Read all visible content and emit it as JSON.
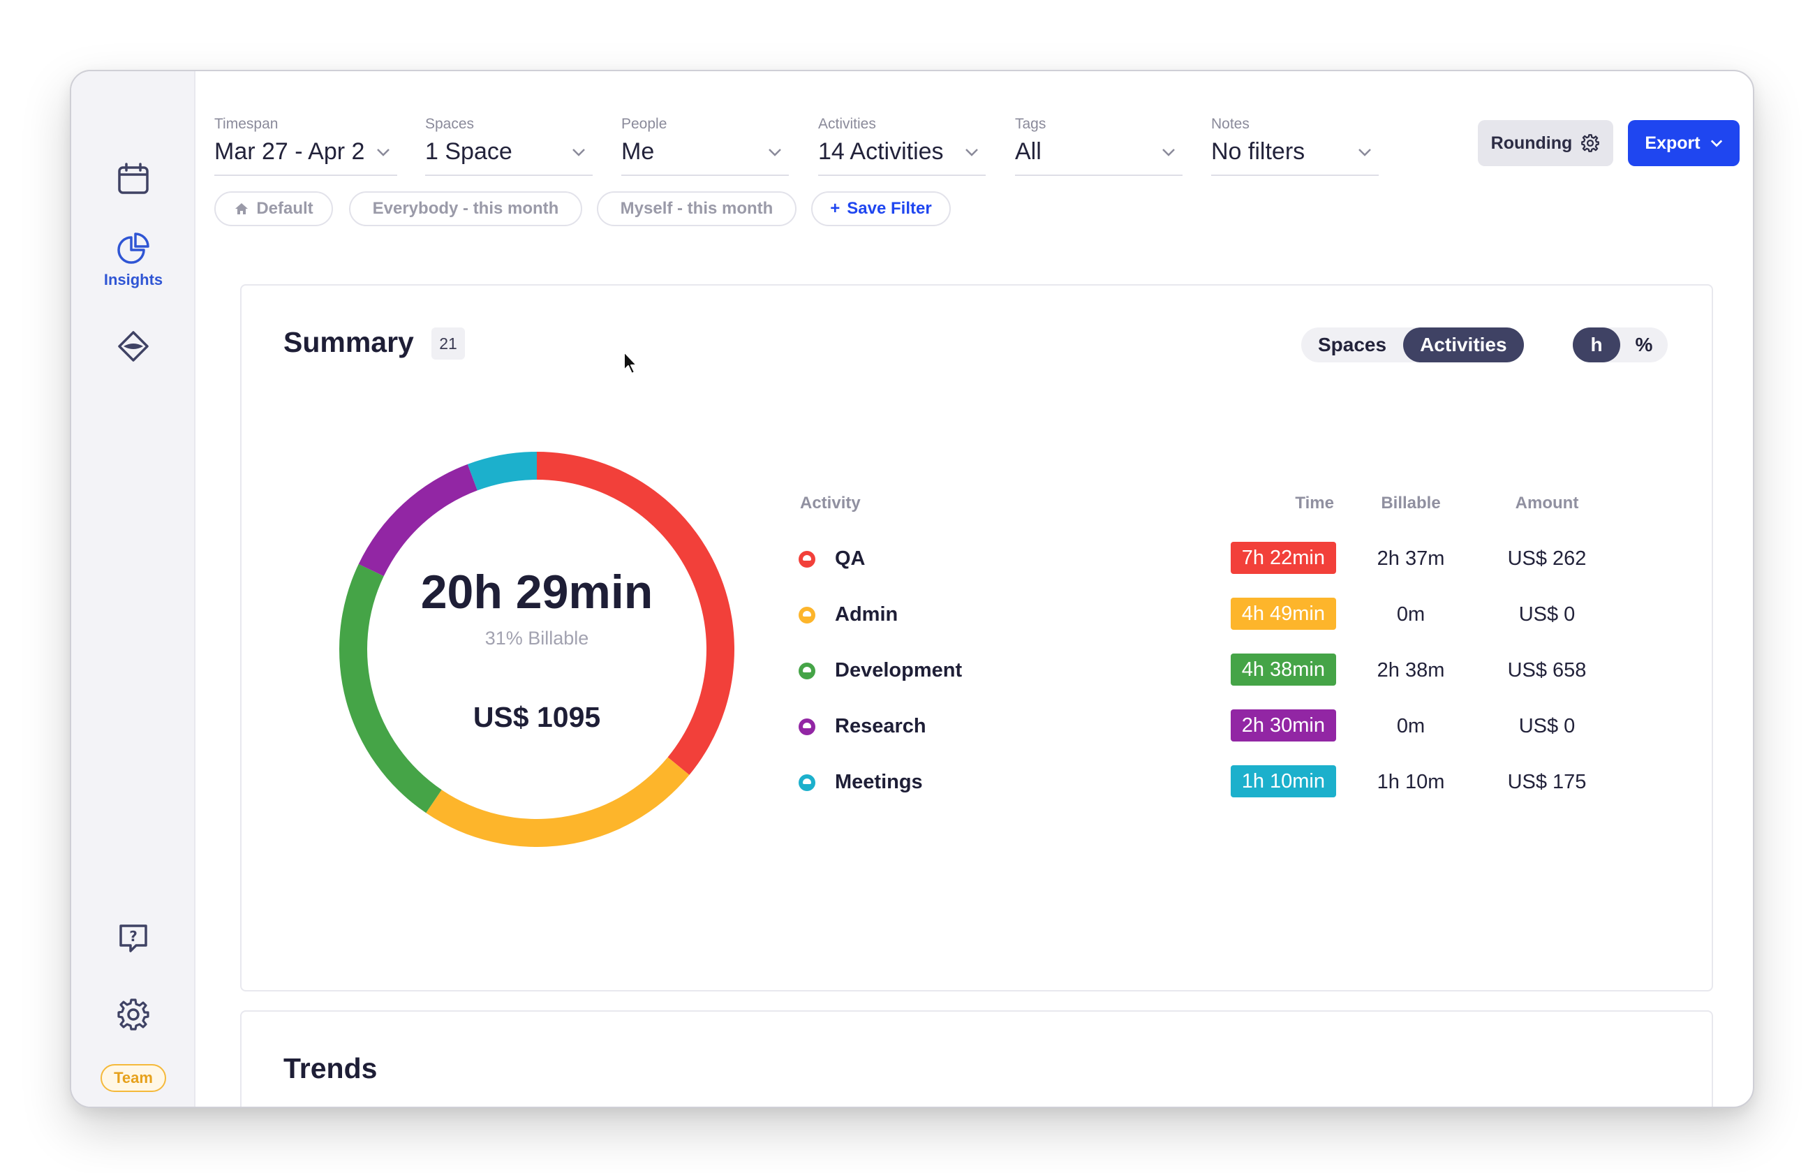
{
  "sidebar": {
    "items": [
      {
        "name": "calendar-icon",
        "label": ""
      },
      {
        "name": "insights-icon",
        "label": "Insights"
      },
      {
        "name": "spaces-icon",
        "label": ""
      }
    ],
    "help_icon": "help-icon",
    "settings_icon": "gear-icon",
    "team_badge": "Team"
  },
  "filters": [
    {
      "label": "Timespan",
      "value": "Mar 27 - Apr 2"
    },
    {
      "label": "Spaces",
      "value": "1 Space"
    },
    {
      "label": "People",
      "value": "Me"
    },
    {
      "label": "Activities",
      "value": "14 Activities"
    },
    {
      "label": "Tags",
      "value": "All"
    },
    {
      "label": "Notes",
      "value": "No filters"
    }
  ],
  "toolbar": {
    "rounding_label": "Rounding",
    "export_label": "Export"
  },
  "chips": [
    {
      "label": "Default",
      "icon": "home-icon"
    },
    {
      "label": "Everybody - this month"
    },
    {
      "label": "Myself - this month"
    },
    {
      "label": "Save Filter",
      "prefix": "+"
    }
  ],
  "summary": {
    "title": "Summary",
    "count": "21",
    "view_toggle": [
      {
        "label": "Spaces",
        "active": false
      },
      {
        "label": "Activities",
        "active": true
      }
    ],
    "unit_toggle": [
      {
        "label": "h",
        "active": true
      },
      {
        "label": "%",
        "active": false
      }
    ],
    "total_time": "20h 29min",
    "billable_text": "31% Billable",
    "total_amount": "US$ 1095",
    "columns": {
      "activity": "Activity",
      "time": "Time",
      "billable": "Billable",
      "amount": "Amount"
    },
    "rows": [
      {
        "name": "QA",
        "time": "7h 22min",
        "billable": "2h 37m",
        "amount": "US$ 262",
        "color": "#f2403a"
      },
      {
        "name": "Admin",
        "time": "4h 49min",
        "billable": "0m",
        "amount": "US$ 0",
        "color": "#fdb52b"
      },
      {
        "name": "Development",
        "time": "4h 38min",
        "billable": "2h 38m",
        "amount": "US$ 658",
        "color": "#45a447"
      },
      {
        "name": "Research",
        "time": "2h 30min",
        "billable": "0m",
        "amount": "US$ 0",
        "color": "#9226a4"
      },
      {
        "name": "Meetings",
        "time": "1h 10min",
        "billable": "1h 10m",
        "amount": "US$ 175",
        "color": "#1cb0cc"
      }
    ]
  },
  "chart_data": {
    "type": "pie",
    "categories": [
      "QA",
      "Admin",
      "Development",
      "Research",
      "Meetings"
    ],
    "values": [
      442,
      289,
      278,
      150,
      70
    ],
    "colors": [
      "#f2403a",
      "#fdb52b",
      "#45a447",
      "#9226a4",
      "#1cb0cc"
    ]
  },
  "trends": {
    "title": "Trends"
  }
}
